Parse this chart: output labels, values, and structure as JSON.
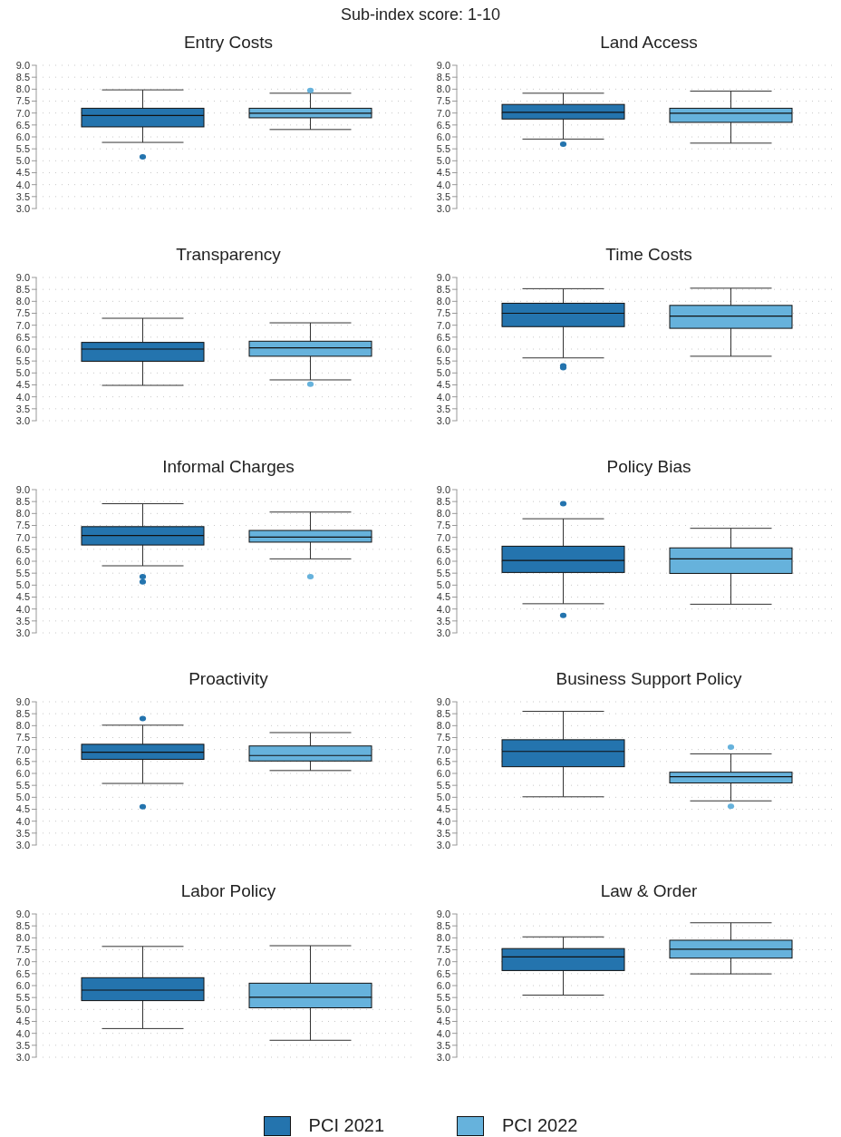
{
  "chart_data": [
    {
      "type": "box",
      "subtitle": "Sub-index score: 1-10",
      "title": "Entry Costs",
      "categories": [
        null
      ],
      "ylim": [
        3,
        9
      ],
      "yticks": [
        {
          "value": 3,
          "label": "3.0"
        },
        {
          "value": 3.5,
          "label": "3.5"
        },
        {
          "value": 4,
          "label": "4.0"
        },
        {
          "value": 4.5,
          "label": "4.5"
        },
        {
          "value": 5,
          "label": "5.0"
        },
        {
          "value": 5.5,
          "label": "5.5"
        },
        {
          "value": 6,
          "label": "6.0"
        },
        {
          "value": 6.5,
          "label": "6.5"
        },
        {
          "value": 7,
          "label": "7.0"
        },
        {
          "value": 7.5,
          "label": "7.5"
        },
        {
          "value": 8,
          "label": "8.0"
        },
        {
          "value": 8.5,
          "label": "8.5"
        },
        {
          "value": 9,
          "label": "9.0"
        }
      ],
      "grid": "y",
      "tick_labels": "y",
      "series": [
        {
          "color": "#2474ae",
          "boxes": [
            {
              "low": 5.77,
              "q1": 6.42,
              "median": 6.9,
              "q3": 7.2,
              "high": 7.97,
              "outliers": [
                5.16
              ]
            }
          ]
        },
        {
          "color": "#66b2dc",
          "boxes": [
            {
              "low": 6.31,
              "q1": 6.8,
              "median": 6.99,
              "q3": 7.2,
              "high": 7.83,
              "outliers": [
                7.95
              ]
            }
          ]
        }
      ]
    },
    {
      "type": "box",
      "title": "Land Access",
      "categories": [
        null
      ],
      "ylim": [
        3,
        9
      ],
      "yticks": [
        {
          "value": 3,
          "label": "3.0"
        },
        {
          "value": 3.5,
          "label": "3.5"
        },
        {
          "value": 4,
          "label": "4.0"
        },
        {
          "value": 4.5,
          "label": "4.5"
        },
        {
          "value": 5,
          "label": "5.0"
        },
        {
          "value": 5.5,
          "label": "5.5"
        },
        {
          "value": 6,
          "label": "6.0"
        },
        {
          "value": 6.5,
          "label": "6.5"
        },
        {
          "value": 7,
          "label": "7.0"
        },
        {
          "value": 7.5,
          "label": "7.5"
        },
        {
          "value": 8,
          "label": "8.0"
        },
        {
          "value": 8.5,
          "label": "8.5"
        },
        {
          "value": 9,
          "label": "9.0"
        }
      ],
      "grid": "y",
      "tick_labels": "y",
      "series": [
        {
          "color": "#2474ae",
          "boxes": [
            {
              "low": 5.91,
              "q1": 6.75,
              "median": 7.03,
              "q3": 7.36,
              "high": 7.83,
              "outliers": [
                5.7
              ]
            }
          ]
        },
        {
          "color": "#66b2dc",
          "boxes": [
            {
              "low": 5.74,
              "q1": 6.61,
              "median": 6.99,
              "q3": 7.2,
              "high": 7.92
            }
          ]
        }
      ]
    },
    {
      "type": "box",
      "title": "Transparency",
      "categories": [
        null
      ],
      "ylim": [
        3,
        9
      ],
      "yticks": [
        {
          "value": 3,
          "label": "3.0"
        },
        {
          "value": 3.5,
          "label": "3.5"
        },
        {
          "value": 4,
          "label": "4.0"
        },
        {
          "value": 4.5,
          "label": "4.5"
        },
        {
          "value": 5,
          "label": "5.0"
        },
        {
          "value": 5.5,
          "label": "5.5"
        },
        {
          "value": 6,
          "label": "6.0"
        },
        {
          "value": 6.5,
          "label": "6.5"
        },
        {
          "value": 7,
          "label": "7.0"
        },
        {
          "value": 7.5,
          "label": "7.5"
        },
        {
          "value": 8,
          "label": "8.0"
        },
        {
          "value": 8.5,
          "label": "8.5"
        },
        {
          "value": 9,
          "label": "9.0"
        }
      ],
      "grid": "y",
      "tick_labels": "y",
      "series": [
        {
          "color": "#2474ae",
          "boxes": [
            {
              "low": 4.48,
              "q1": 5.49,
              "median": 6.0,
              "q3": 6.28,
              "high": 7.29
            }
          ]
        },
        {
          "color": "#66b2dc",
          "boxes": [
            {
              "low": 4.71,
              "q1": 5.7,
              "median": 6.05,
              "q3": 6.33,
              "high": 7.1,
              "outliers": [
                4.53
              ]
            }
          ]
        }
      ]
    },
    {
      "type": "box",
      "title": "Time Costs",
      "categories": [
        null
      ],
      "ylim": [
        3,
        9
      ],
      "yticks": [
        {
          "value": 3,
          "label": "3.0"
        },
        {
          "value": 3.5,
          "label": "3.5"
        },
        {
          "value": 4,
          "label": "4.0"
        },
        {
          "value": 4.5,
          "label": "4.5"
        },
        {
          "value": 5,
          "label": "5.0"
        },
        {
          "value": 5.5,
          "label": "5.5"
        },
        {
          "value": 6,
          "label": "6.0"
        },
        {
          "value": 6.5,
          "label": "6.5"
        },
        {
          "value": 7,
          "label": "7.0"
        },
        {
          "value": 7.5,
          "label": "7.5"
        },
        {
          "value": 8,
          "label": "8.0"
        },
        {
          "value": 8.5,
          "label": "8.5"
        },
        {
          "value": 9,
          "label": "9.0"
        }
      ],
      "grid": "y",
      "tick_labels": "y",
      "series": [
        {
          "color": "#2474ae",
          "boxes": [
            {
              "low": 5.63,
              "q1": 6.94,
              "median": 7.5,
              "q3": 7.92,
              "high": 8.53,
              "outliers": [
                5.3,
                5.22
              ]
            }
          ]
        },
        {
          "color": "#66b2dc",
          "boxes": [
            {
              "low": 5.7,
              "q1": 6.87,
              "median": 7.38,
              "q3": 7.83,
              "high": 8.55
            }
          ]
        }
      ]
    },
    {
      "type": "box",
      "title": "Informal Charges",
      "categories": [
        null
      ],
      "ylim": [
        3,
        9
      ],
      "yticks": [
        {
          "value": 3,
          "label": "3.0"
        },
        {
          "value": 3.5,
          "label": "3.5"
        },
        {
          "value": 4,
          "label": "4.0"
        },
        {
          "value": 4.5,
          "label": "4.5"
        },
        {
          "value": 5,
          "label": "5.0"
        },
        {
          "value": 5.5,
          "label": "5.5"
        },
        {
          "value": 6,
          "label": "6.0"
        },
        {
          "value": 6.5,
          "label": "6.5"
        },
        {
          "value": 7,
          "label": "7.0"
        },
        {
          "value": 7.5,
          "label": "7.5"
        },
        {
          "value": 8,
          "label": "8.0"
        },
        {
          "value": 8.5,
          "label": "8.5"
        },
        {
          "value": 9,
          "label": "9.0"
        }
      ],
      "grid": "y",
      "tick_labels": "y",
      "series": [
        {
          "color": "#2474ae",
          "boxes": [
            {
              "low": 5.81,
              "q1": 6.68,
              "median": 7.08,
              "q3": 7.45,
              "high": 8.41,
              "outliers": [
                5.35,
                5.14
              ]
            }
          ]
        },
        {
          "color": "#66b2dc",
          "boxes": [
            {
              "low": 6.1,
              "q1": 6.8,
              "median": 7.01,
              "q3": 7.29,
              "high": 8.06,
              "outliers": [
                5.35
              ]
            }
          ]
        }
      ]
    },
    {
      "type": "box",
      "title": "Policy Bias",
      "categories": [
        null
      ],
      "ylim": [
        3,
        9
      ],
      "yticks": [
        {
          "value": 3,
          "label": "3.0"
        },
        {
          "value": 3.5,
          "label": "3.5"
        },
        {
          "value": 4,
          "label": "4.0"
        },
        {
          "value": 4.5,
          "label": "4.5"
        },
        {
          "value": 5,
          "label": "5.0"
        },
        {
          "value": 5.5,
          "label": "5.5"
        },
        {
          "value": 6,
          "label": "6.0"
        },
        {
          "value": 6.5,
          "label": "6.5"
        },
        {
          "value": 7,
          "label": "7.0"
        },
        {
          "value": 7.5,
          "label": "7.5"
        },
        {
          "value": 8,
          "label": "8.0"
        },
        {
          "value": 8.5,
          "label": "8.5"
        },
        {
          "value": 9,
          "label": "9.0"
        }
      ],
      "grid": "y",
      "tick_labels": "y",
      "series": [
        {
          "color": "#2474ae",
          "boxes": [
            {
              "low": 4.22,
              "q1": 5.53,
              "median": 6.03,
              "q3": 6.63,
              "high": 7.78,
              "outliers": [
                8.41,
                3.73
              ]
            }
          ]
        },
        {
          "color": "#66b2dc",
          "boxes": [
            {
              "low": 4.2,
              "q1": 5.49,
              "median": 6.1,
              "q3": 6.56,
              "high": 7.38
            }
          ]
        }
      ]
    },
    {
      "type": "box",
      "title": "Proactivity",
      "categories": [
        null
      ],
      "ylim": [
        3,
        9
      ],
      "yticks": [
        {
          "value": 3,
          "label": "3.0"
        },
        {
          "value": 3.5,
          "label": "3.5"
        },
        {
          "value": 4,
          "label": "4.0"
        },
        {
          "value": 4.5,
          "label": "4.5"
        },
        {
          "value": 5,
          "label": "5.0"
        },
        {
          "value": 5.5,
          "label": "5.5"
        },
        {
          "value": 6,
          "label": "6.0"
        },
        {
          "value": 6.5,
          "label": "6.5"
        },
        {
          "value": 7,
          "label": "7.0"
        },
        {
          "value": 7.5,
          "label": "7.5"
        },
        {
          "value": 8,
          "label": "8.0"
        },
        {
          "value": 8.5,
          "label": "8.5"
        },
        {
          "value": 9,
          "label": "9.0"
        }
      ],
      "grid": "y",
      "tick_labels": "y",
      "series": [
        {
          "color": "#2474ae",
          "boxes": [
            {
              "low": 5.58,
              "q1": 6.59,
              "median": 6.89,
              "q3": 7.22,
              "high": 8.02,
              "outliers": [
                8.3,
                4.6
              ]
            }
          ]
        },
        {
          "color": "#66b2dc",
          "boxes": [
            {
              "low": 6.12,
              "q1": 6.52,
              "median": 6.75,
              "q3": 7.15,
              "high": 7.71
            }
          ]
        }
      ]
    },
    {
      "type": "box",
      "title": "Business Support Policy",
      "categories": [
        null
      ],
      "ylim": [
        3,
        9
      ],
      "yticks": [
        {
          "value": 3,
          "label": "3.0"
        },
        {
          "value": 3.5,
          "label": "3.5"
        },
        {
          "value": 4,
          "label": "4.0"
        },
        {
          "value": 4.5,
          "label": "4.5"
        },
        {
          "value": 5,
          "label": "5.0"
        },
        {
          "value": 5.5,
          "label": "5.5"
        },
        {
          "value": 6,
          "label": "6.0"
        },
        {
          "value": 6.5,
          "label": "6.5"
        },
        {
          "value": 7,
          "label": "7.0"
        },
        {
          "value": 7.5,
          "label": "7.5"
        },
        {
          "value": 8,
          "label": "8.0"
        },
        {
          "value": 8.5,
          "label": "8.5"
        },
        {
          "value": 9,
          "label": "9.0"
        }
      ],
      "grid": "y",
      "tick_labels": "y",
      "series": [
        {
          "color": "#2474ae",
          "boxes": [
            {
              "low": 5.02,
              "q1": 6.28,
              "median": 6.92,
              "q3": 7.41,
              "high": 8.6
            }
          ]
        },
        {
          "color": "#66b2dc",
          "boxes": [
            {
              "low": 4.85,
              "q1": 5.6,
              "median": 5.86,
              "q3": 6.05,
              "high": 6.82,
              "outliers": [
                7.1,
                4.62
              ]
            }
          ]
        }
      ]
    },
    {
      "type": "box",
      "title": "Labor Policy",
      "categories": [
        null
      ],
      "ylim": [
        3,
        9
      ],
      "yticks": [
        {
          "value": 3,
          "label": "3.0"
        },
        {
          "value": 3.5,
          "label": "3.5"
        },
        {
          "value": 4,
          "label": "4.0"
        },
        {
          "value": 4.5,
          "label": "4.5"
        },
        {
          "value": 5,
          "label": "5.0"
        },
        {
          "value": 5.5,
          "label": "5.5"
        },
        {
          "value": 6,
          "label": "6.0"
        },
        {
          "value": 6.5,
          "label": "6.5"
        },
        {
          "value": 7,
          "label": "7.0"
        },
        {
          "value": 7.5,
          "label": "7.5"
        },
        {
          "value": 8,
          "label": "8.0"
        },
        {
          "value": 8.5,
          "label": "8.5"
        },
        {
          "value": 9,
          "label": "9.0"
        }
      ],
      "grid": "y",
      "tick_labels": "y",
      "series": [
        {
          "color": "#2474ae",
          "boxes": [
            {
              "low": 4.2,
              "q1": 5.37,
              "median": 5.81,
              "q3": 6.33,
              "high": 7.64
            }
          ]
        },
        {
          "color": "#66b2dc",
          "boxes": [
            {
              "low": 3.71,
              "q1": 5.07,
              "median": 5.51,
              "q3": 6.1,
              "high": 7.67
            }
          ]
        }
      ]
    },
    {
      "type": "box",
      "title": "Law & Order",
      "categories": [
        null
      ],
      "ylim": [
        3,
        9
      ],
      "yticks": [
        {
          "value": 3,
          "label": "3.0"
        },
        {
          "value": 3.5,
          "label": "3.5"
        },
        {
          "value": 4,
          "label": "4.0"
        },
        {
          "value": 4.5,
          "label": "4.5"
        },
        {
          "value": 5,
          "label": "5.0"
        },
        {
          "value": 5.5,
          "label": "5.5"
        },
        {
          "value": 6,
          "label": "6.0"
        },
        {
          "value": 6.5,
          "label": "6.5"
        },
        {
          "value": 7,
          "label": "7.0"
        },
        {
          "value": 7.5,
          "label": "7.5"
        },
        {
          "value": 8,
          "label": "8.0"
        },
        {
          "value": 8.5,
          "label": "8.5"
        },
        {
          "value": 9,
          "label": "9.0"
        }
      ],
      "grid": "y",
      "tick_labels": "y",
      "legend": "bottom",
      "series": [
        {
          "name": "PCI 2021",
          "color": "#2474ae",
          "boxes": [
            {
              "low": 5.6,
              "q1": 6.63,
              "median": 7.2,
              "q3": 7.55,
              "high": 8.04
            }
          ]
        },
        {
          "name": "PCI 2022",
          "color": "#66b2dc",
          "boxes": [
            {
              "low": 6.49,
              "q1": 7.15,
              "median": 7.52,
              "q3": 7.9,
              "high": 8.63
            }
          ]
        }
      ]
    }
  ]
}
